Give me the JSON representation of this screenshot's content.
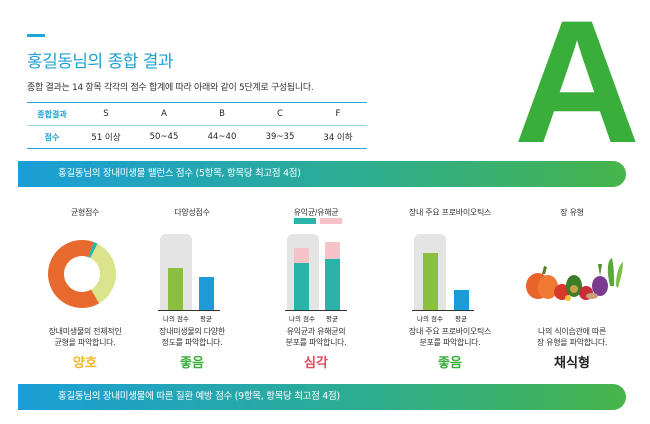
{
  "header": {
    "title": "홍길동님의 종합 결과",
    "description": "종합 결과는 14 항목 각각의 점수 합계에 따라 아래와 같이 5단계로 구성됩니다."
  },
  "grade_table": {
    "row1_label": "종합결과",
    "row2_label": "점수",
    "grades": [
      "S",
      "A",
      "B",
      "C",
      "F"
    ],
    "scores": [
      "51 이상",
      "50~45",
      "44~40",
      "39~35",
      "34 이하"
    ]
  },
  "final_grade": "A",
  "colors": {
    "grade_green": "#3aae3a",
    "title_blue": "#1d9fd1",
    "bar_green": "#8bbf3f",
    "bar_blue": "#1e9bd7",
    "bar_teal": "#2ab3a8",
    "bar_pink": "#f6c4c8",
    "result_yellow": "#f2b824",
    "result_green": "#3aae3a",
    "result_red": "#e8455a",
    "result_black": "#222222"
  },
  "section1": {
    "banner": "홍길동님의 장내미생물 밸런스 점수 (5항목, 항목당 최고점 4점)",
    "balance": {
      "title": "균형점수",
      "desc_line1": "장내미생물의 전체적인",
      "desc_line2": "균형을 파악합니다.",
      "result": "양호",
      "donut_fractions": [
        0.02,
        0.34,
        0.64
      ]
    },
    "diversity": {
      "title": "다양성점수",
      "my_label": "나의 점수",
      "avg_label": "평균",
      "my_fraction": 0.55,
      "avg_fraction": 0.43,
      "desc_line1": "장내미생물의 다양한",
      "desc_line2": "정도를 파악합니다.",
      "result": "좋음"
    },
    "beneficial": {
      "title": "유익균/유해균",
      "my_label": "나의 점수",
      "avg_label": "평균",
      "my_beneficial_fraction": 0.62,
      "my_harmful_fraction": 0.2,
      "avg_beneficial_fraction": 0.67,
      "avg_harmful_fraction": 0.22,
      "desc_line1": "유익균과 유해균의",
      "desc_line2": "분포를 파악합니다.",
      "result": "심각"
    },
    "probiotics": {
      "title": "장내 주요 프로바이오틱스",
      "my_label": "나의 점수",
      "avg_label": "평균",
      "my_fraction": 0.75,
      "avg_fraction": 0.26,
      "desc_line1": "장내 주요 프로바이오틱스",
      "desc_line2": "분포를 파악합니다.",
      "result": "좋음"
    },
    "gut_type": {
      "title": "장 유형",
      "desc_line1": "나의 식이습관에 따른",
      "desc_line2": "장 유형을 파악합니다.",
      "result": "채식형",
      "image": "vegetables-illustration"
    }
  },
  "section2": {
    "banner": "홍길동님의 장내미생물에 따른 질환 예방 점수 (9항목, 항목당 최고점 4점)"
  }
}
